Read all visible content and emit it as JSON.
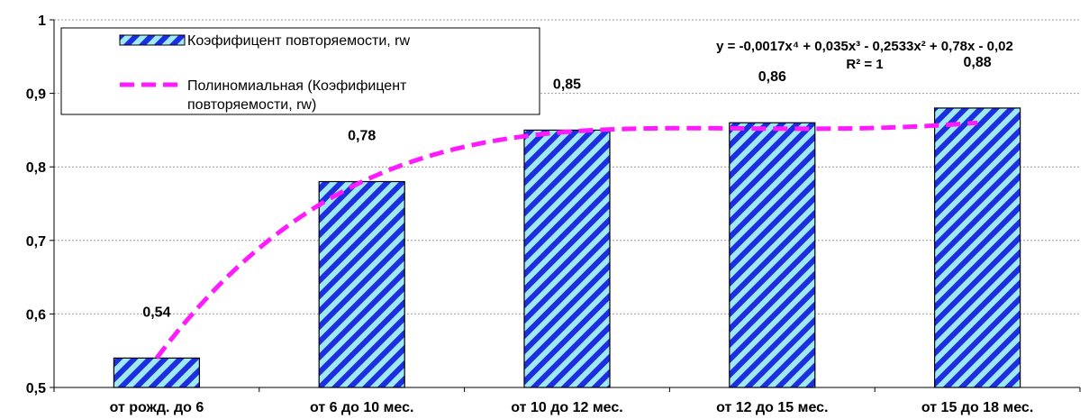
{
  "chart_data": {
    "type": "bar",
    "categories": [
      "от рожд. до 6",
      "от 6 до 10 мес.",
      "от 10 до 12 мес.",
      "от 12 до 15 мес.",
      "от 15 до 18 мес."
    ],
    "series": [
      {
        "name": "Коэфифицент повторяемости, rw",
        "values": [
          0.54,
          0.78,
          0.85,
          0.86,
          0.88
        ]
      }
    ],
    "data_labels": [
      "0,54",
      "0,78",
      "0,85",
      "0,86",
      "0,88"
    ],
    "trendline": {
      "name_lines": [
        "Полиномиальная (Коэфифицент",
        "повторяемости, rw)"
      ],
      "type": "polynomial",
      "order": 4,
      "coefficients": [
        -0.0017,
        0.035,
        -0.2533,
        0.78,
        -0.02
      ],
      "equation": "y = -0,0017x⁴ + 0,035x³ - 0,2533x² + 0,78x - 0,02",
      "r_squared": "R² = 1"
    },
    "y_ticks": [
      "0,5",
      "0,6",
      "0,7",
      "0,8",
      "0,9",
      "1"
    ],
    "ylim": [
      0.5,
      1.0
    ],
    "grid": true,
    "legend_position": "top-left",
    "colors": {
      "bar_stripe": "#1c2ee0",
      "bar_bg": "#9fe9f5",
      "trend": "#ff1aff",
      "grid": "#9a9a9a"
    }
  }
}
